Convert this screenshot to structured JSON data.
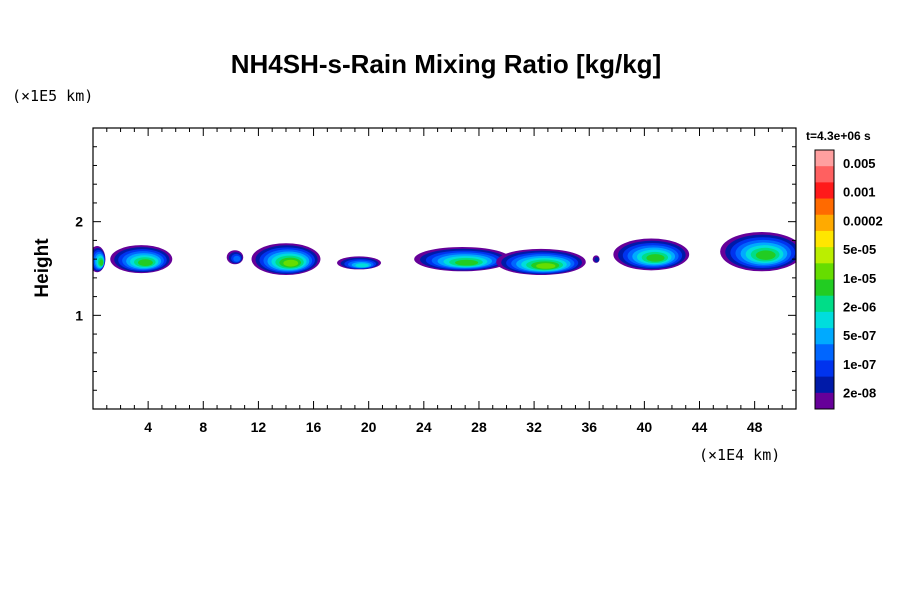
{
  "chart_data": {
    "type": "heatmap",
    "title": "NH4SH-s-Rain Mixing Ratio [kg/kg]",
    "ylabel": "Height",
    "x_unit": "(×1E4 km)",
    "y_unit": "(×1E5 km)",
    "time_label": "t=4.3e+06 s",
    "xlim": [
      0,
      51
    ],
    "ylim": [
      0,
      3
    ],
    "x_ticks": [
      "4",
      "8",
      "12",
      "16",
      "20",
      "24",
      "28",
      "32",
      "36",
      "40",
      "44",
      "48"
    ],
    "y_ticks": [
      "1",
      "2"
    ],
    "colorbar": {
      "labels": [
        "0.005",
        "0.001",
        "0.0002",
        "5e-05",
        "1e-05",
        "2e-06",
        "5e-07",
        "1e-07",
        "2e-08"
      ],
      "colors": [
        "#ff9f9f",
        "#ff6060",
        "#ff1a1a",
        "#ff6a00",
        "#ffaa00",
        "#ffe600",
        "#bbee00",
        "#66dd00",
        "#22cc22",
        "#00dd88",
        "#00dddd",
        "#00aaff",
        "#0066ff",
        "#0033ee",
        "#001aa8",
        "#660099"
      ]
    },
    "cells": [
      {
        "x": 0.3,
        "y": 1.6,
        "w": 1.2,
        "h": 0.28,
        "level": 0.78
      },
      {
        "x": 3.5,
        "y": 1.6,
        "w": 4.5,
        "h": 0.3,
        "level": 0.82
      },
      {
        "x": 10.3,
        "y": 1.62,
        "w": 1.2,
        "h": 0.15,
        "level": 0.4
      },
      {
        "x": 14.0,
        "y": 1.6,
        "w": 5.0,
        "h": 0.34,
        "level": 0.85
      },
      {
        "x": 19.3,
        "y": 1.56,
        "w": 3.2,
        "h": 0.14,
        "level": 0.55
      },
      {
        "x": 26.8,
        "y": 1.6,
        "w": 7.0,
        "h": 0.26,
        "level": 0.8
      },
      {
        "x": 32.5,
        "y": 1.57,
        "w": 6.5,
        "h": 0.28,
        "level": 0.85
      },
      {
        "x": 36.5,
        "y": 1.6,
        "w": 0.5,
        "h": 0.08,
        "level": 0.2
      },
      {
        "x": 40.5,
        "y": 1.65,
        "w": 5.5,
        "h": 0.34,
        "level": 0.78
      },
      {
        "x": 48.5,
        "y": 1.68,
        "w": 6.0,
        "h": 0.42,
        "level": 0.82
      }
    ]
  }
}
